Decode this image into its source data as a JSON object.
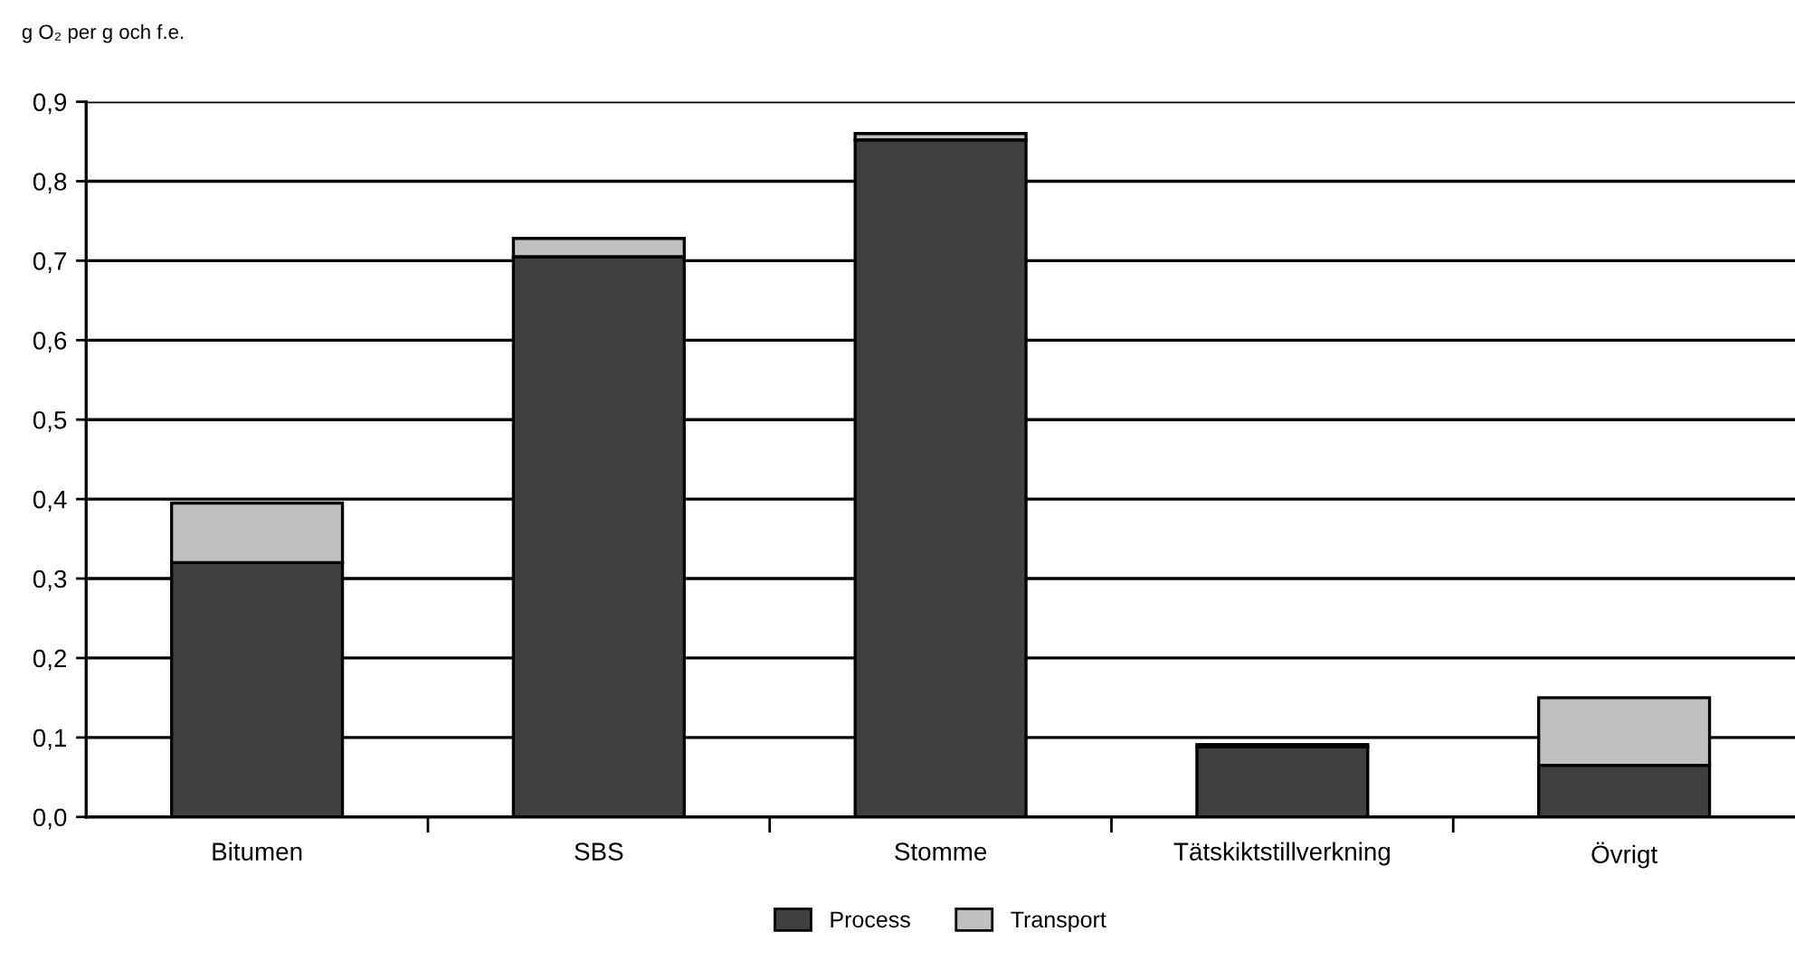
{
  "chart_data": {
    "type": "bar",
    "ylabel": "g O₂ per g och f.e.",
    "stacked": true,
    "categories": [
      "Bitumen",
      "SBS",
      "Stomme",
      "Tätskiktstillverkning",
      "Övrigt"
    ],
    "series": [
      {
        "name": "Process",
        "color": "#404040",
        "values": [
          0.32,
          0.705,
          0.852,
          0.088,
          0.065
        ]
      },
      {
        "name": "Transport",
        "color": "#c0c0c0",
        "values": [
          0.075,
          0.023,
          0.008,
          0.003,
          0.085
        ]
      }
    ],
    "ylim": [
      0,
      0.9
    ],
    "yticks": [
      {
        "value": 0,
        "label": "0,0"
      },
      {
        "value": 0.1,
        "label": "0,1"
      },
      {
        "value": 0.2,
        "label": "0,2"
      },
      {
        "value": 0.3,
        "label": "0,3"
      },
      {
        "value": 0.4,
        "label": "0,4"
      },
      {
        "value": 0.5,
        "label": "0,5"
      },
      {
        "value": 0.6,
        "label": "0,6"
      },
      {
        "value": 0.7,
        "label": "0,7"
      },
      {
        "value": 0.8,
        "label": "0,8"
      },
      {
        "value": 0.9,
        "label": "0,9"
      }
    ],
    "grid": "y",
    "legend": "bottom"
  }
}
